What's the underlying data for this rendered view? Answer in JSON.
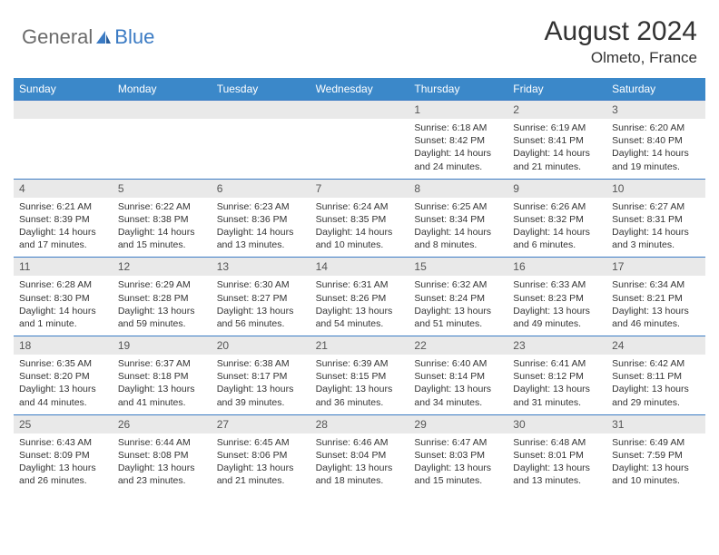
{
  "brand": {
    "part1": "General",
    "part2": "Blue"
  },
  "title": "August 2024",
  "location": "Olmeto, France",
  "colors": {
    "header_bg": "#3b88c9",
    "rule": "#3b7bc4",
    "strip": "#e9e9e9",
    "text": "#333333"
  },
  "day_names": [
    "Sunday",
    "Monday",
    "Tuesday",
    "Wednesday",
    "Thursday",
    "Friday",
    "Saturday"
  ],
  "weeks": [
    {
      "dates": [
        "",
        "",
        "",
        "",
        "1",
        "2",
        "3"
      ],
      "cells": [
        null,
        null,
        null,
        null,
        {
          "sunrise": "Sunrise: 6:18 AM",
          "sunset": "Sunset: 8:42 PM",
          "daylight": "Daylight: 14 hours and 24 minutes."
        },
        {
          "sunrise": "Sunrise: 6:19 AM",
          "sunset": "Sunset: 8:41 PM",
          "daylight": "Daylight: 14 hours and 21 minutes."
        },
        {
          "sunrise": "Sunrise: 6:20 AM",
          "sunset": "Sunset: 8:40 PM",
          "daylight": "Daylight: 14 hours and 19 minutes."
        }
      ]
    },
    {
      "dates": [
        "4",
        "5",
        "6",
        "7",
        "8",
        "9",
        "10"
      ],
      "cells": [
        {
          "sunrise": "Sunrise: 6:21 AM",
          "sunset": "Sunset: 8:39 PM",
          "daylight": "Daylight: 14 hours and 17 minutes."
        },
        {
          "sunrise": "Sunrise: 6:22 AM",
          "sunset": "Sunset: 8:38 PM",
          "daylight": "Daylight: 14 hours and 15 minutes."
        },
        {
          "sunrise": "Sunrise: 6:23 AM",
          "sunset": "Sunset: 8:36 PM",
          "daylight": "Daylight: 14 hours and 13 minutes."
        },
        {
          "sunrise": "Sunrise: 6:24 AM",
          "sunset": "Sunset: 8:35 PM",
          "daylight": "Daylight: 14 hours and 10 minutes."
        },
        {
          "sunrise": "Sunrise: 6:25 AM",
          "sunset": "Sunset: 8:34 PM",
          "daylight": "Daylight: 14 hours and 8 minutes."
        },
        {
          "sunrise": "Sunrise: 6:26 AM",
          "sunset": "Sunset: 8:32 PM",
          "daylight": "Daylight: 14 hours and 6 minutes."
        },
        {
          "sunrise": "Sunrise: 6:27 AM",
          "sunset": "Sunset: 8:31 PM",
          "daylight": "Daylight: 14 hours and 3 minutes."
        }
      ]
    },
    {
      "dates": [
        "11",
        "12",
        "13",
        "14",
        "15",
        "16",
        "17"
      ],
      "cells": [
        {
          "sunrise": "Sunrise: 6:28 AM",
          "sunset": "Sunset: 8:30 PM",
          "daylight": "Daylight: 14 hours and 1 minute."
        },
        {
          "sunrise": "Sunrise: 6:29 AM",
          "sunset": "Sunset: 8:28 PM",
          "daylight": "Daylight: 13 hours and 59 minutes."
        },
        {
          "sunrise": "Sunrise: 6:30 AM",
          "sunset": "Sunset: 8:27 PM",
          "daylight": "Daylight: 13 hours and 56 minutes."
        },
        {
          "sunrise": "Sunrise: 6:31 AM",
          "sunset": "Sunset: 8:26 PM",
          "daylight": "Daylight: 13 hours and 54 minutes."
        },
        {
          "sunrise": "Sunrise: 6:32 AM",
          "sunset": "Sunset: 8:24 PM",
          "daylight": "Daylight: 13 hours and 51 minutes."
        },
        {
          "sunrise": "Sunrise: 6:33 AM",
          "sunset": "Sunset: 8:23 PM",
          "daylight": "Daylight: 13 hours and 49 minutes."
        },
        {
          "sunrise": "Sunrise: 6:34 AM",
          "sunset": "Sunset: 8:21 PM",
          "daylight": "Daylight: 13 hours and 46 minutes."
        }
      ]
    },
    {
      "dates": [
        "18",
        "19",
        "20",
        "21",
        "22",
        "23",
        "24"
      ],
      "cells": [
        {
          "sunrise": "Sunrise: 6:35 AM",
          "sunset": "Sunset: 8:20 PM",
          "daylight": "Daylight: 13 hours and 44 minutes."
        },
        {
          "sunrise": "Sunrise: 6:37 AM",
          "sunset": "Sunset: 8:18 PM",
          "daylight": "Daylight: 13 hours and 41 minutes."
        },
        {
          "sunrise": "Sunrise: 6:38 AM",
          "sunset": "Sunset: 8:17 PM",
          "daylight": "Daylight: 13 hours and 39 minutes."
        },
        {
          "sunrise": "Sunrise: 6:39 AM",
          "sunset": "Sunset: 8:15 PM",
          "daylight": "Daylight: 13 hours and 36 minutes."
        },
        {
          "sunrise": "Sunrise: 6:40 AM",
          "sunset": "Sunset: 8:14 PM",
          "daylight": "Daylight: 13 hours and 34 minutes."
        },
        {
          "sunrise": "Sunrise: 6:41 AM",
          "sunset": "Sunset: 8:12 PM",
          "daylight": "Daylight: 13 hours and 31 minutes."
        },
        {
          "sunrise": "Sunrise: 6:42 AM",
          "sunset": "Sunset: 8:11 PM",
          "daylight": "Daylight: 13 hours and 29 minutes."
        }
      ]
    },
    {
      "dates": [
        "25",
        "26",
        "27",
        "28",
        "29",
        "30",
        "31"
      ],
      "cells": [
        {
          "sunrise": "Sunrise: 6:43 AM",
          "sunset": "Sunset: 8:09 PM",
          "daylight": "Daylight: 13 hours and 26 minutes."
        },
        {
          "sunrise": "Sunrise: 6:44 AM",
          "sunset": "Sunset: 8:08 PM",
          "daylight": "Daylight: 13 hours and 23 minutes."
        },
        {
          "sunrise": "Sunrise: 6:45 AM",
          "sunset": "Sunset: 8:06 PM",
          "daylight": "Daylight: 13 hours and 21 minutes."
        },
        {
          "sunrise": "Sunrise: 6:46 AM",
          "sunset": "Sunset: 8:04 PM",
          "daylight": "Daylight: 13 hours and 18 minutes."
        },
        {
          "sunrise": "Sunrise: 6:47 AM",
          "sunset": "Sunset: 8:03 PM",
          "daylight": "Daylight: 13 hours and 15 minutes."
        },
        {
          "sunrise": "Sunrise: 6:48 AM",
          "sunset": "Sunset: 8:01 PM",
          "daylight": "Daylight: 13 hours and 13 minutes."
        },
        {
          "sunrise": "Sunrise: 6:49 AM",
          "sunset": "Sunset: 7:59 PM",
          "daylight": "Daylight: 13 hours and 10 minutes."
        }
      ]
    }
  ]
}
